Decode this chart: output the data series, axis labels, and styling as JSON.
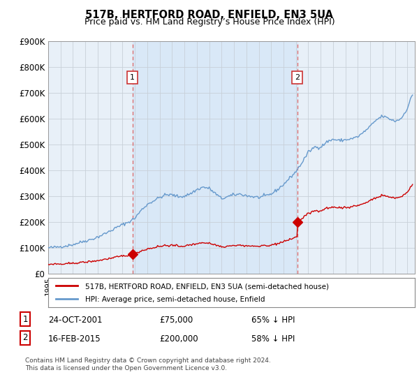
{
  "title": "517B, HERTFORD ROAD, ENFIELD, EN3 5UA",
  "subtitle": "Price paid vs. HM Land Registry’s House Price Index (HPI)",
  "ylabel_ticks": [
    "£0",
    "£100K",
    "£200K",
    "£300K",
    "£400K",
    "£500K",
    "£600K",
    "£700K",
    "£800K",
    "£900K"
  ],
  "ytick_values": [
    0,
    100000,
    200000,
    300000,
    400000,
    500000,
    600000,
    700000,
    800000,
    900000
  ],
  "ylim": [
    0,
    900000
  ],
  "sale1_year": 2001.81,
  "sale1_price": 75000,
  "sale2_year": 2015.12,
  "sale2_price": 200000,
  "hpi_color": "#6699cc",
  "hpi_fill_color": "#d0e4f7",
  "sale_color": "#cc0000",
  "vline_color": "#dd6666",
  "background_color": "#ffffff",
  "plot_bg_color": "#e8f0f8",
  "grid_color": "#c8d0d8",
  "legend_border_color": "#888888",
  "footnote": "Contains HM Land Registry data © Crown copyright and database right 2024.\nThis data is licensed under the Open Government Licence v3.0.",
  "legend_line1": "517B, HERTFORD ROAD, ENFIELD, EN3 5UA (semi-detached house)",
  "legend_line2": "HPI: Average price, semi-detached house, Enfield",
  "table_row1": [
    "1",
    "24-OCT-2001",
    "£75,000",
    "65% ↓ HPI"
  ],
  "table_row2": [
    "2",
    "16-FEB-2015",
    "£200,000",
    "58% ↓ HPI"
  ]
}
